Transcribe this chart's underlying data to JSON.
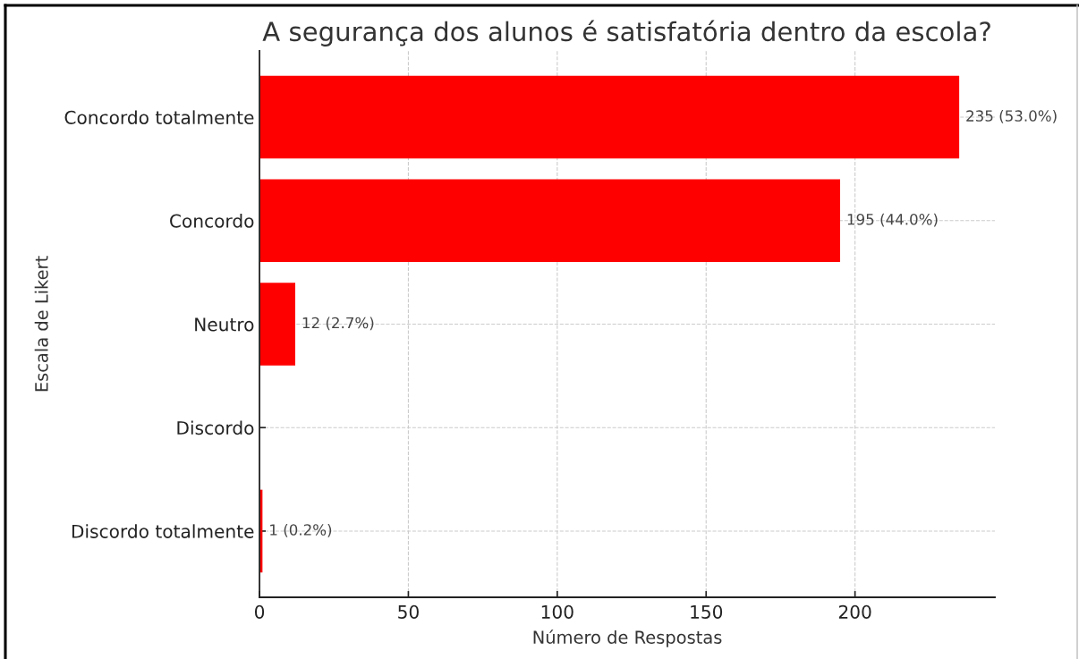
{
  "chart_data": {
    "type": "bar",
    "orientation": "horizontal",
    "title": "A segurança dos alunos é satisfatória dentro da escola?",
    "xlabel": "Número de Respostas",
    "ylabel": "Escala de Likert",
    "categories": [
      "Concordo totalmente",
      "Concordo",
      "Neutro",
      "Discordo",
      "Discordo totalmente"
    ],
    "values": [
      235,
      195,
      12,
      0,
      1
    ],
    "color": "#ff0000",
    "value_labels": [
      "235 (53.0%)",
      "195 (44.0%)",
      "12 (2.7%)",
      null,
      "1 (0.2%)"
    ],
    "xlim": [
      0,
      247
    ],
    "xticks": [
      0,
      50,
      100,
      150,
      200
    ],
    "grid": true
  }
}
